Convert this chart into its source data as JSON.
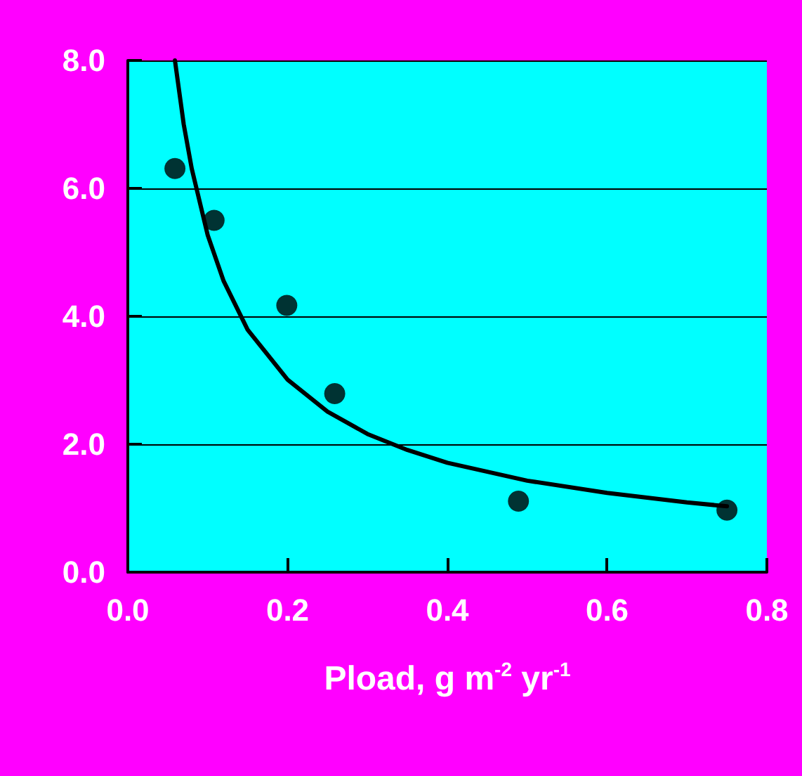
{
  "chart_data": {
    "type": "scatter",
    "xlabel": "Pload, g m$^{-2}$ yr$^{-1}$",
    "xlim": [
      0,
      0.8
    ],
    "ylim": [
      0,
      8
    ],
    "xticks": [
      {
        "value": 0,
        "label": "0.0"
      },
      {
        "value": 0.2,
        "label": "0.2"
      },
      {
        "value": 0.4,
        "label": "0.4"
      },
      {
        "value": 0.6,
        "label": "0.6"
      },
      {
        "value": 0.8,
        "label": "0.8"
      }
    ],
    "yticks": [
      {
        "value": 0,
        "label": "0.0"
      },
      {
        "value": 2,
        "label": "2.0"
      },
      {
        "value": 4,
        "label": "4.0"
      },
      {
        "value": 6,
        "label": "6.0"
      },
      {
        "value": 8,
        "label": "8.0"
      }
    ],
    "grid": "y",
    "marker": "circle",
    "series": [
      {
        "color": "#000000",
        "x": [
          0.059,
          0.108,
          0.199,
          0.259,
          0.489,
          0.75
        ],
        "values": [
          6.31,
          5.5,
          4.17,
          2.79,
          1.11,
          0.97
        ]
      },
      {
        "type": "line",
        "color": "#000000",
        "marker": "none",
        "x": [
          0.059,
          0.07,
          0.08,
          0.1,
          0.12,
          0.15,
          0.2,
          0.25,
          0.3,
          0.35,
          0.4,
          0.5,
          0.6,
          0.7,
          0.75
        ],
        "values": [
          8.0,
          7.0,
          6.31,
          5.27,
          4.55,
          3.79,
          3.01,
          2.51,
          2.16,
          1.91,
          1.71,
          1.43,
          1.24,
          1.09,
          1.03
        ]
      }
    ]
  }
}
